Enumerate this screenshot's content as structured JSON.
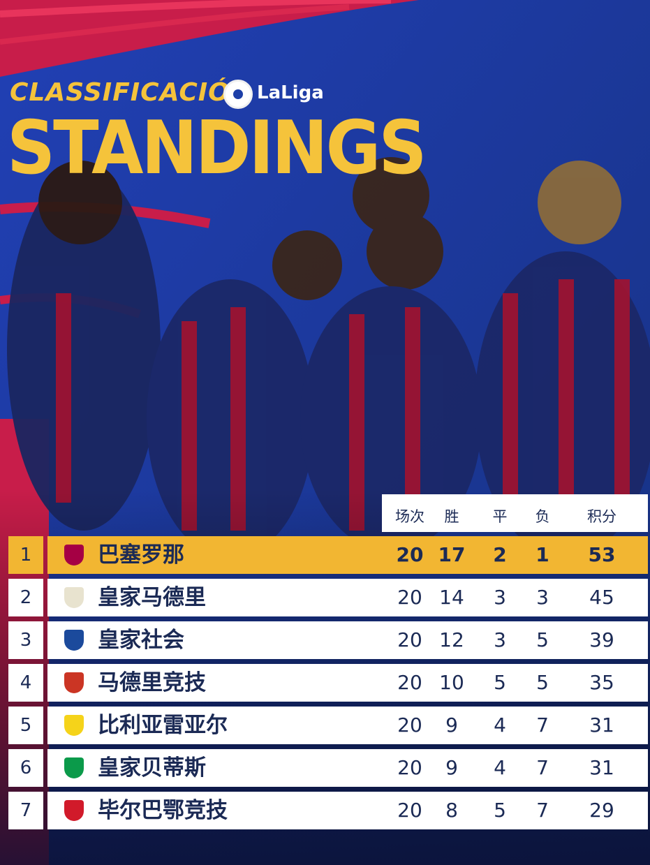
{
  "header": {
    "subtitle": "CLASSIFICACIÓ",
    "brand": "LaLiga",
    "title": "STANDINGS"
  },
  "table": {
    "columns": [
      "场次",
      "胜",
      "平",
      "负",
      "积分"
    ],
    "rows": [
      {
        "rank": 1,
        "team": "巴塞罗那",
        "played": 20,
        "won": 17,
        "drawn": 2,
        "lost": 1,
        "points": 53
      },
      {
        "rank": 2,
        "team": "皇家马德里",
        "played": 20,
        "won": 14,
        "drawn": 3,
        "lost": 3,
        "points": 45
      },
      {
        "rank": 3,
        "team": "皇家社会",
        "played": 20,
        "won": 12,
        "drawn": 3,
        "lost": 5,
        "points": 39
      },
      {
        "rank": 4,
        "team": "马德里竞技",
        "played": 20,
        "won": 10,
        "drawn": 5,
        "lost": 5,
        "points": 35
      },
      {
        "rank": 5,
        "team": "比利亚雷亚尔",
        "played": 20,
        "won": 9,
        "drawn": 4,
        "lost": 7,
        "points": 31
      },
      {
        "rank": 6,
        "team": "皇家贝蒂斯",
        "played": 20,
        "won": 9,
        "drawn": 4,
        "lost": 7,
        "points": 31
      },
      {
        "rank": 7,
        "team": "毕尔巴鄂竞技",
        "played": 20,
        "won": 8,
        "drawn": 5,
        "lost": 7,
        "points": 29
      }
    ]
  }
}
